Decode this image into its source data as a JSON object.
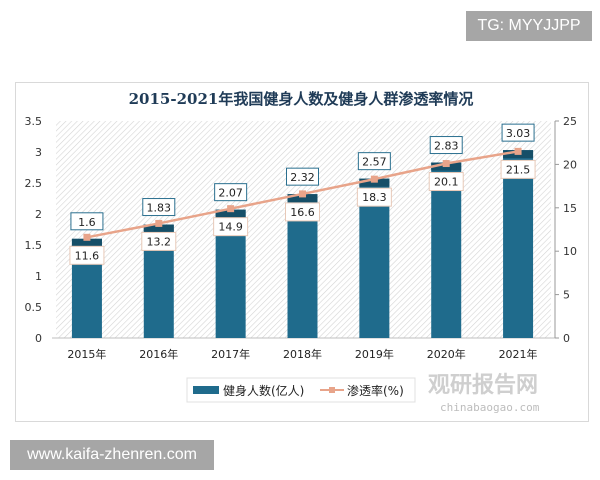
{
  "watermark_top": "TG: MYYJJPP",
  "watermark_bottom": "www.kaifa-zhenren.com",
  "logo": {
    "cn": "观研报告网",
    "en": "chinabaogao.com"
  },
  "colors": {
    "bar": "#1f6b8c",
    "bar_top": "#164f68",
    "line": "#e8a48a",
    "title": "#1f3b57"
  },
  "chart_data": {
    "type": "bar+line",
    "title": "2015-2021年我国健身人数及健身人群渗透率情况",
    "categories": [
      "2015年",
      "2016年",
      "2017年",
      "2018年",
      "2019年",
      "2020年",
      "2021年"
    ],
    "series": [
      {
        "name": "健身人数(亿人)",
        "type": "bar",
        "axis": "left",
        "values": [
          1.6,
          1.83,
          2.07,
          2.32,
          2.57,
          2.83,
          3.03
        ]
      },
      {
        "name": "渗透率(%)",
        "type": "line",
        "axis": "right",
        "values": [
          11.6,
          13.2,
          14.9,
          16.6,
          18.3,
          20.1,
          21.5
        ]
      }
    ],
    "y_left": {
      "range": [
        0,
        3.5
      ],
      "ticks": [
        "0",
        "0.5",
        "1",
        "1.5",
        "2",
        "2.5",
        "3",
        "3.5"
      ]
    },
    "y_right": {
      "range": [
        0,
        25
      ],
      "ticks": [
        "0",
        "5",
        "10",
        "15",
        "20",
        "25"
      ]
    },
    "legend": "bottom",
    "grid": false
  }
}
